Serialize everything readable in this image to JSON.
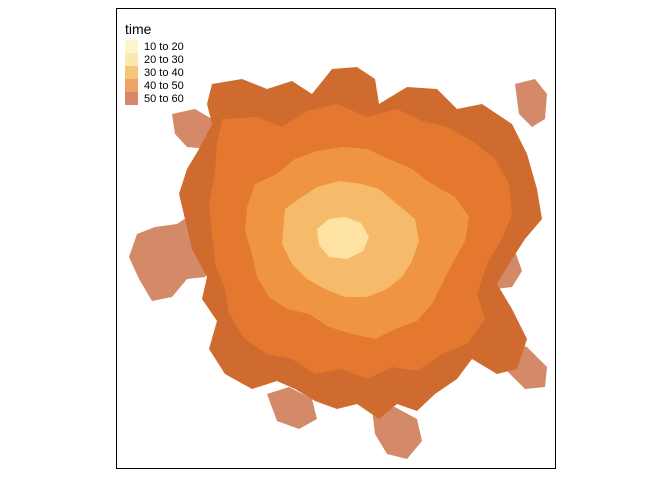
{
  "legend": {
    "title": "time",
    "classes": [
      {
        "label": "10 to 20",
        "color": "#fdf5cd"
      },
      {
        "label": "20 to 30",
        "color": "#fde7b1"
      },
      {
        "label": "30 to 40",
        "color": "#f6c57a"
      },
      {
        "label": "40 to 50",
        "color": "#eda362"
      },
      {
        "label": "50 to 60",
        "color": "#d7876a"
      }
    ]
  },
  "map_colors": {
    "band_20_30": "#fde2a2",
    "band_30_40": "#f5bb6b",
    "band_40_50": "#ef9440",
    "band_50_60_inner": "#e4782f",
    "band_50_60_dark": "#cf6b2f",
    "band_outer": "#d48a68"
  }
}
